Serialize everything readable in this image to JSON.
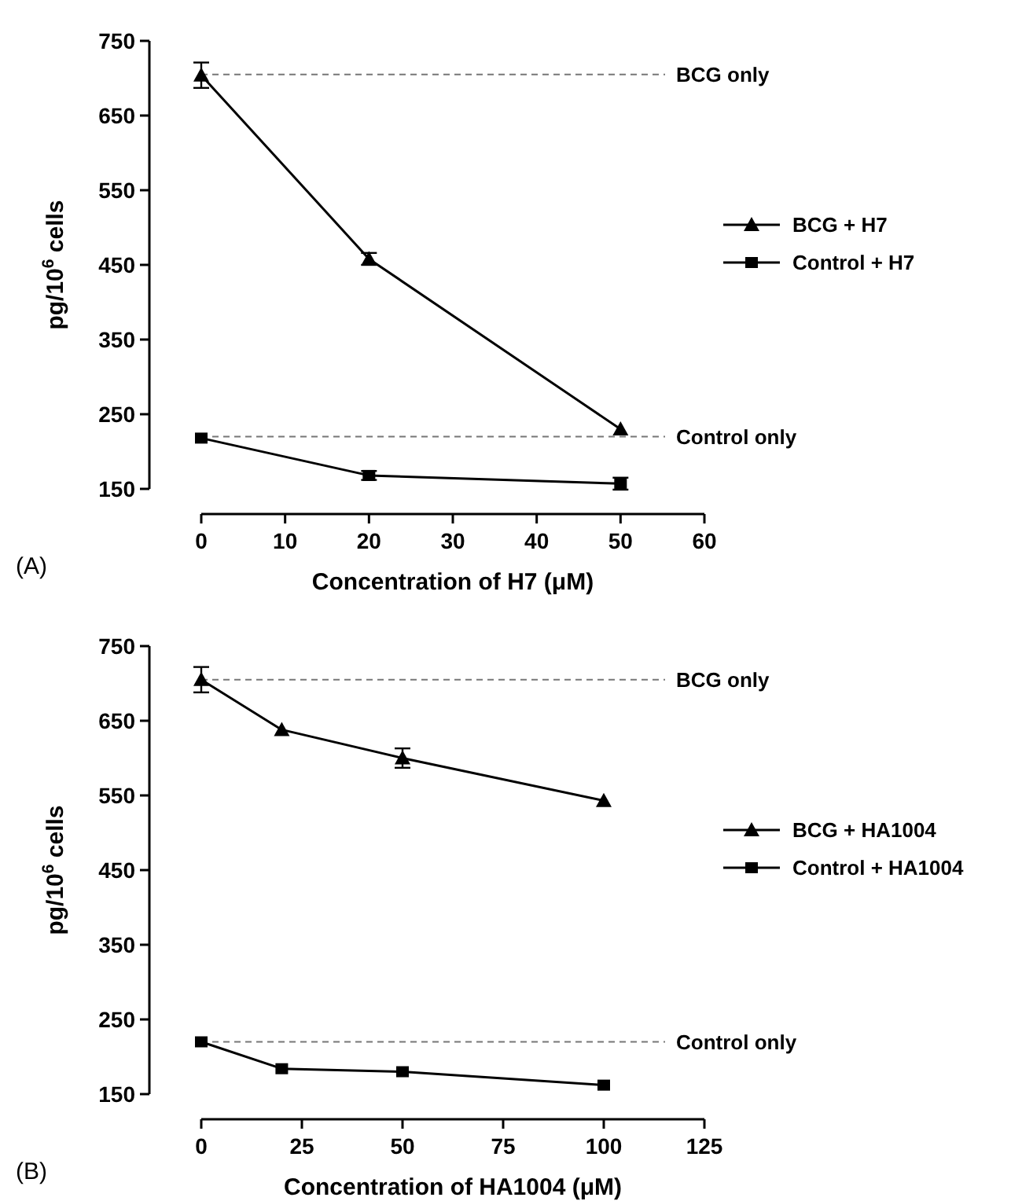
{
  "chart_data": [
    {
      "type": "line",
      "xlabel": "Concentration of H7 (μM)",
      "ylabel": "pg/10$^{6}$ cells",
      "x": [
        0,
        20,
        50
      ],
      "xlim": [
        0,
        60
      ],
      "xticks": [
        0,
        10,
        20,
        30,
        40,
        50,
        60
      ],
      "ylim": [
        150,
        750
      ],
      "yticks": [
        150,
        250,
        350,
        450,
        550,
        650,
        750
      ],
      "legend": "right",
      "grid": false,
      "annotations": [
        "(A)"
      ],
      "series": [
        {
          "name": "BCG + H7",
          "color": "#000000",
          "marker": "triangle",
          "values": [
            704,
            458,
            230
          ],
          "errors": [
            17,
            8,
            null
          ]
        },
        {
          "name": "Control + H7",
          "color": "#000000",
          "marker": "square",
          "values": [
            218,
            168,
            157
          ],
          "errors": [
            null,
            6,
            8
          ]
        }
      ],
      "ref_lines": [
        {
          "axis": "y",
          "value": 705,
          "label": "BCG only",
          "color": "#777777",
          "line_style": "dashed"
        },
        {
          "axis": "y",
          "value": 220,
          "label": "Control only",
          "color": "#777777",
          "line_style": "dashed"
        }
      ]
    },
    {
      "type": "line",
      "xlabel": "Concentration of HA1004 (μM)",
      "ylabel": "pg/10$^{6}$ cells",
      "x": [
        0,
        20,
        50,
        100
      ],
      "xlim": [
        0,
        125
      ],
      "xticks": [
        0,
        25,
        50,
        75,
        100,
        125
      ],
      "ylim": [
        150,
        750
      ],
      "yticks": [
        150,
        250,
        350,
        450,
        550,
        650,
        750
      ],
      "legend": "right",
      "grid": false,
      "annotations": [
        "(B)"
      ],
      "series": [
        {
          "name": "BCG + HA1004",
          "color": "#000000",
          "marker": "triangle",
          "values": [
            705,
            638,
            600,
            543
          ],
          "errors": [
            17,
            null,
            13,
            null
          ]
        },
        {
          "name": "Control + HA1004",
          "color": "#000000",
          "marker": "square",
          "values": [
            220,
            184,
            180,
            162
          ],
          "errors": [
            null,
            null,
            null,
            null
          ]
        }
      ],
      "ref_lines": [
        {
          "axis": "y",
          "value": 705,
          "label": "BCG only",
          "color": "#777777",
          "line_style": "dashed"
        },
        {
          "axis": "y",
          "value": 220,
          "label": "Control only",
          "color": "#777777",
          "line_style": "dashed"
        }
      ]
    }
  ]
}
